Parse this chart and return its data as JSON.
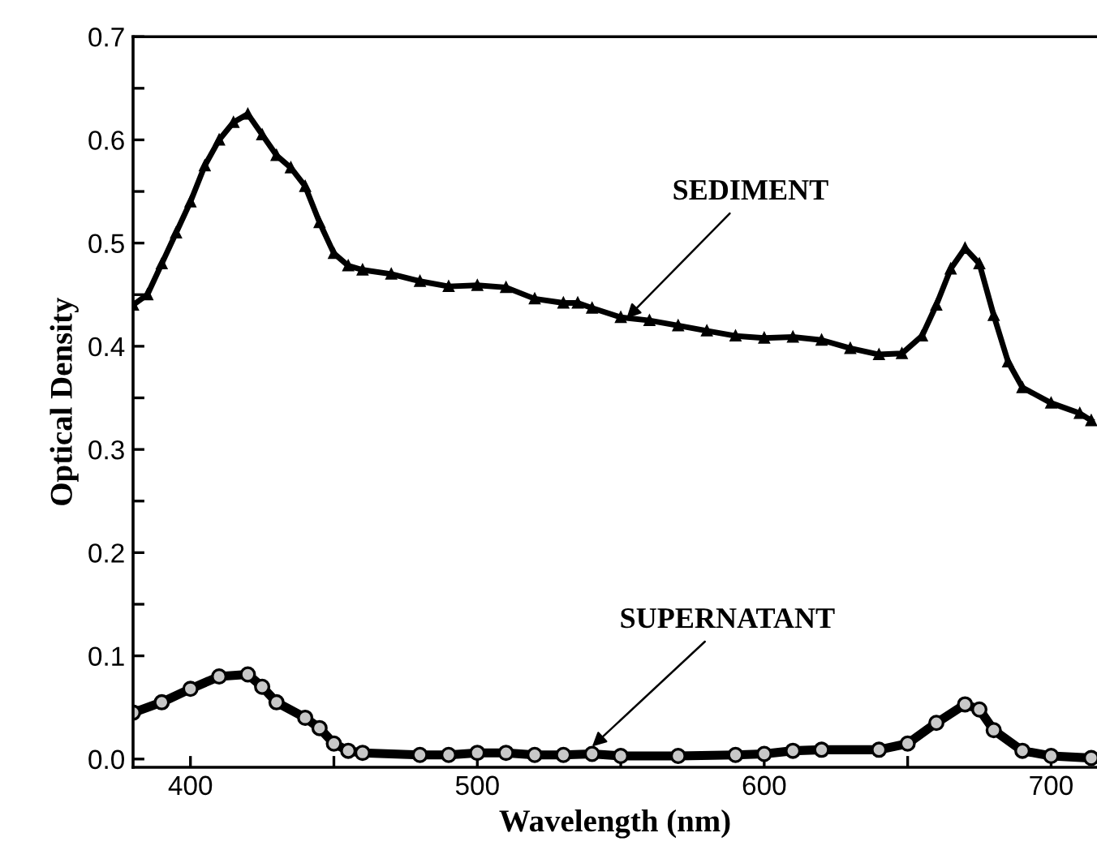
{
  "chart_data": {
    "type": "line",
    "xlabel": "Wavelength (nm)",
    "ylabel": "Optical Density",
    "xlim": [
      380,
      716
    ],
    "ylim": [
      -0.008,
      0.7
    ],
    "xticks": [
      400,
      {
        "value": 450,
        "label": null
      },
      500,
      {
        "value": 550,
        "label": null
      },
      600,
      {
        "value": 650,
        "label": null
      },
      700
    ],
    "yticks": [
      "0.0",
      {
        "value": 0.05,
        "label": null
      },
      0.1,
      {
        "value": 0.15,
        "label": null
      },
      0.2,
      {
        "value": 0.25,
        "label": null
      },
      0.3,
      {
        "value": 0.35,
        "label": null
      },
      0.4,
      {
        "value": 0.45,
        "label": null
      },
      0.5,
      {
        "value": 0.55,
        "label": null
      },
      0.6,
      {
        "value": 0.65,
        "label": null
      },
      0.7
    ],
    "grid": false,
    "legend": false,
    "series": [
      {
        "color": "#000000",
        "marker": "triangle",
        "x": [
          380,
          385,
          390,
          395,
          400,
          405,
          410,
          415,
          420,
          425,
          430,
          435,
          440,
          445,
          450,
          455,
          460,
          470,
          480,
          490,
          500,
          510,
          520,
          530,
          535,
          540,
          550,
          560,
          570,
          580,
          590,
          600,
          610,
          620,
          630,
          640,
          648,
          655,
          660,
          665,
          670,
          675,
          680,
          685,
          690,
          700,
          710,
          714
        ],
        "values": [
          0.44,
          0.45,
          0.48,
          0.51,
          0.54,
          0.575,
          0.6,
          0.617,
          0.625,
          0.605,
          0.585,
          0.573,
          0.555,
          0.52,
          0.49,
          0.478,
          0.474,
          0.47,
          0.463,
          0.458,
          0.459,
          0.457,
          0.446,
          0.442,
          0.442,
          0.437,
          0.428,
          0.425,
          0.42,
          0.415,
          0.41,
          0.408,
          0.409,
          0.406,
          0.398,
          0.392,
          0.393,
          0.41,
          0.44,
          0.475,
          0.495,
          0.48,
          0.43,
          0.385,
          0.36,
          0.345,
          0.335,
          0.328
        ]
      },
      {
        "color": "#c8c8c8",
        "marker": "circle",
        "x": [
          380,
          390,
          400,
          410,
          420,
          425,
          430,
          440,
          445,
          450,
          455,
          460,
          480,
          490,
          500,
          510,
          520,
          530,
          540,
          550,
          570,
          590,
          600,
          610,
          620,
          640,
          650,
          660,
          670,
          675,
          680,
          690,
          700,
          714
        ],
        "values": [
          0.045,
          0.055,
          0.068,
          0.08,
          0.082,
          0.07,
          0.055,
          0.04,
          0.03,
          0.015,
          0.008,
          0.006,
          0.004,
          0.004,
          0.006,
          0.006,
          0.004,
          0.004,
          0.005,
          0.003,
          0.003,
          0.004,
          0.005,
          0.008,
          0.009,
          0.009,
          0.015,
          0.035,
          0.053,
          0.048,
          0.028,
          0.008,
          0.003,
          0.001
        ]
      }
    ],
    "annotations": [
      {
        "text": "SEDIMENT",
        "x": 552,
        "y": 0.427
      },
      {
        "text": "SUPERNATANT",
        "x": 540,
        "y": 0.012
      }
    ]
  }
}
